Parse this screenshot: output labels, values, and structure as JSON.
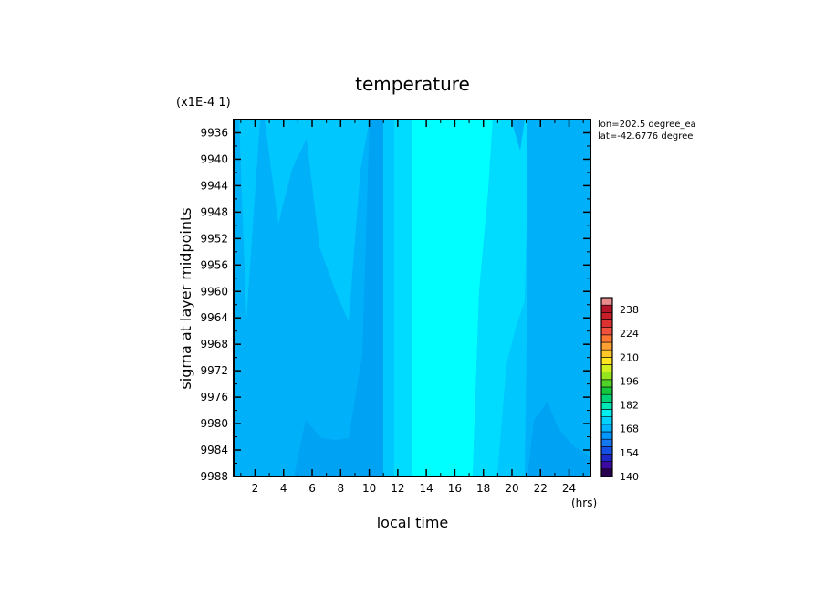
{
  "chart_data": {
    "type": "heatmap",
    "title": "temperature",
    "xlabel": "local time",
    "ylabel": "sigma at layer midpoints",
    "x_unit": "(hrs)",
    "y_scale_note": "(x1E-4 1)",
    "xlim": [
      0.5,
      25.5
    ],
    "ylim": [
      9988,
      9934
    ],
    "xticks": [
      2,
      4,
      6,
      8,
      10,
      12,
      14,
      16,
      18,
      20,
      22,
      24
    ],
    "yticks": [
      9936,
      9940,
      9944,
      9948,
      9952,
      9956,
      9960,
      9964,
      9968,
      9972,
      9976,
      9980,
      9984,
      9988
    ],
    "annotations": [
      "lon=202.5 degree_ea",
      "lat=-42.6776 degree"
    ],
    "colorbar": {
      "ticks": [
        140,
        154,
        168,
        182,
        196,
        210,
        224,
        238
      ],
      "range": [
        140,
        245
      ],
      "colors": [
        "#2a0050",
        "#3b0aa0",
        "#1e28c8",
        "#1450e6",
        "#1478f0",
        "#0096ff",
        "#00b4ff",
        "#00d2ff",
        "#00f0f0",
        "#00e6b4",
        "#00d278",
        "#14c83c",
        "#50d228",
        "#96e61e",
        "#d2f01e",
        "#ffe61e",
        "#ffc828",
        "#ffa032",
        "#ff7832",
        "#f0503c",
        "#dc3232",
        "#c81e28",
        "#b41428",
        "#e68c8c"
      ]
    },
    "levels_shown": [
      {
        "band": "160-163",
        "color": "#00a2f4"
      },
      {
        "band": "163-166",
        "color": "#00b0f8"
      },
      {
        "band": "166-169",
        "color": "#00c8ff"
      },
      {
        "band": "169-172",
        "color": "#00dcff"
      },
      {
        "band": "172-175",
        "color": "#00ffff"
      }
    ]
  }
}
